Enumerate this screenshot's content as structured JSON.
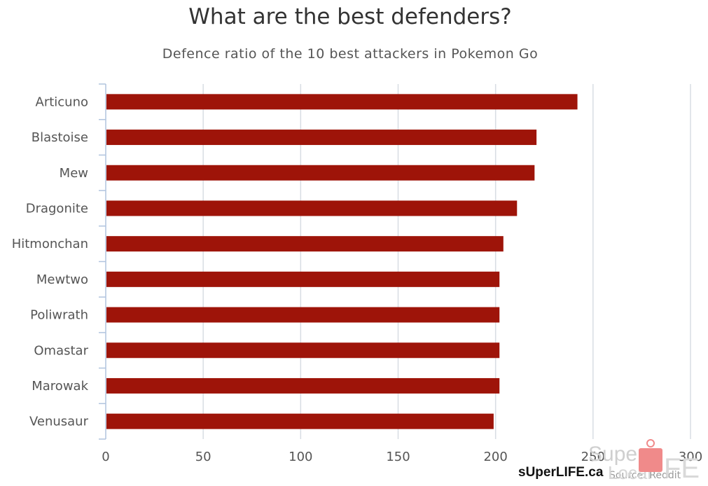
{
  "title": "What are the best defenders?",
  "subtitle": "Defence ratio of the 10 best attackers in Pokemon Go",
  "source": "Source: Reddit",
  "watermark": "sUperLIFE.ca",
  "colors": {
    "bar": "#9e1409",
    "grid": "#d8dde3",
    "axis": "#b0c4de",
    "text": "#555555"
  },
  "chart_data": {
    "type": "bar",
    "orientation": "horizontal",
    "categories": [
      "Articuno",
      "Blastoise",
      "Mew",
      "Dragonite",
      "Hitmonchan",
      "Mewtwo",
      "Poliwrath",
      "Omastar",
      "Marowak",
      "Venusaur"
    ],
    "values": [
      242,
      221,
      220,
      211,
      204,
      202,
      202,
      202,
      202,
      199
    ],
    "xlim": [
      0,
      300
    ],
    "xticks": [
      0,
      50,
      100,
      150,
      200,
      250,
      300
    ],
    "grid": true,
    "legend": "none"
  }
}
